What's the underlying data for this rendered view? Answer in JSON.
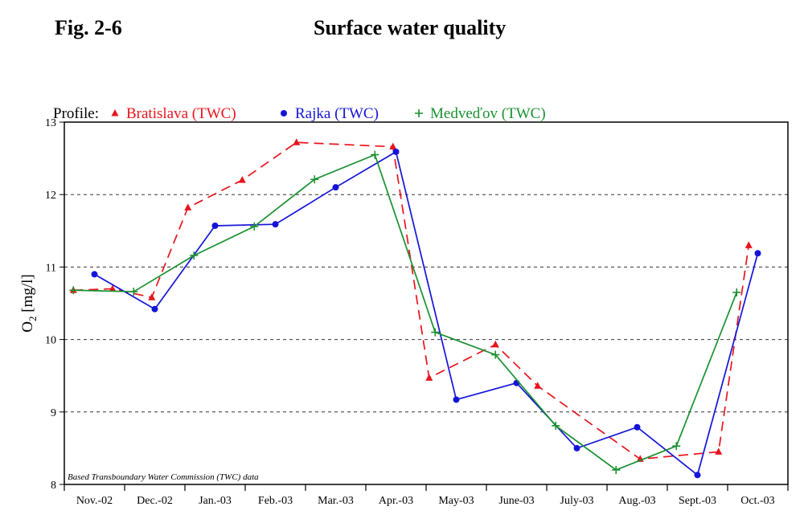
{
  "figure": {
    "label": "Fig. 2-6",
    "title": "Surface water quality"
  },
  "chart_data": {
    "type": "line",
    "legend_prefix": "Profile:",
    "ylabel": "O",
    "ylabel_subscript": "2",
    "ylabel_unit": " [mg/l]",
    "ylim": [
      8,
      13
    ],
    "yticks": [
      8,
      9,
      10,
      11,
      12,
      13
    ],
    "grid": "horizontal dashed",
    "legend_position": "top-left, above plot",
    "note": "Based Transboundary Water Commission (TWC) data",
    "categories": [
      "Nov.-02",
      "Dec.-02",
      "Jan.-03",
      "Feb.-03",
      "Mar.-03",
      "Apr.-03",
      "May-03",
      "June-03",
      "July-03",
      "Aug.-03",
      "Sept.-03",
      "Oct.-03"
    ],
    "series": [
      {
        "name": "Bratislava (TWC)",
        "color": "#e8141c",
        "marker": "triangle",
        "dash": true,
        "x": [
          0.15,
          0.8,
          1.45,
          2.05,
          2.95,
          3.85,
          5.45,
          6.05,
          7.15,
          7.85,
          9.55,
          10.85,
          11.35
        ],
        "values": [
          10.68,
          10.7,
          10.58,
          11.82,
          12.2,
          12.72,
          12.66,
          9.47,
          9.93,
          9.36,
          8.35,
          8.45,
          11.3
        ]
      },
      {
        "name": "Rajka (TWC)",
        "color": "#1414d8",
        "marker": "circle",
        "dash": false,
        "x": [
          0.5,
          1.5,
          2.5,
          3.5,
          4.5,
          5.5,
          6.5,
          7.5,
          8.5,
          9.5,
          10.5,
          11.5
        ],
        "values": [
          10.9,
          10.42,
          11.57,
          11.59,
          12.1,
          12.59,
          9.17,
          9.4,
          8.5,
          8.79,
          8.13,
          11.19
        ]
      },
      {
        "name": "Medveďov (TWC)",
        "color": "#1a9030",
        "marker": "plus",
        "dash": false,
        "x": [
          0.15,
          1.15,
          2.15,
          3.15,
          4.15,
          5.15,
          6.15,
          7.15,
          8.15,
          9.15,
          10.15,
          11.15
        ],
        "values": [
          10.68,
          10.66,
          11.16,
          11.56,
          12.21,
          12.55,
          10.1,
          9.79,
          8.81,
          8.2,
          8.53,
          10.65
        ]
      }
    ]
  }
}
